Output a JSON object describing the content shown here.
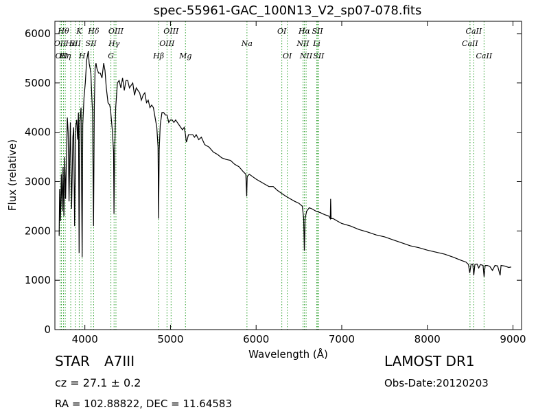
{
  "chart_data": {
    "type": "line",
    "title": "spec-55961-GAC_100N13_V2_sp07-078.fits",
    "xlabel": "Wavelength (Å)",
    "ylabel": "Flux (relative)",
    "xlim": [
      3650,
      9100
    ],
    "ylim": [
      0,
      6250
    ],
    "xticks": [
      4000,
      5000,
      6000,
      7000,
      8000,
      9000
    ],
    "yticks": [
      0,
      1000,
      2000,
      3000,
      4000,
      5000,
      6000
    ],
    "grid": false,
    "series": [
      {
        "points": [
          [
            3700,
            1900
          ],
          [
            3705,
            2850
          ],
          [
            3715,
            2200
          ],
          [
            3725,
            3150
          ],
          [
            3735,
            2400
          ],
          [
            3745,
            3300
          ],
          [
            3755,
            2300
          ],
          [
            3765,
            3500
          ],
          [
            3775,
            2650
          ],
          [
            3785,
            3450
          ],
          [
            3795,
            4300
          ],
          [
            3805,
            4000
          ],
          [
            3815,
            2600
          ],
          [
            3830,
            4200
          ],
          [
            3845,
            2450
          ],
          [
            3860,
            3900
          ],
          [
            3870,
            4100
          ],
          [
            3880,
            2100
          ],
          [
            3895,
            4150
          ],
          [
            3905,
            4250
          ],
          [
            3915,
            3850
          ],
          [
            3925,
            4400
          ],
          [
            3933,
            1550
          ],
          [
            3940,
            4200
          ],
          [
            3955,
            4500
          ],
          [
            3968,
            1470
          ],
          [
            3975,
            4150
          ],
          [
            3990,
            4700
          ],
          [
            4005,
            5000
          ],
          [
            4020,
            5450
          ],
          [
            4030,
            5550
          ],
          [
            4040,
            5650
          ],
          [
            4050,
            5400
          ],
          [
            4060,
            5300
          ],
          [
            4070,
            5200
          ],
          [
            4080,
            4750
          ],
          [
            4090,
            4400
          ],
          [
            4101,
            2100
          ],
          [
            4110,
            4500
          ],
          [
            4120,
            5300
          ],
          [
            4130,
            5400
          ],
          [
            4140,
            5300
          ],
          [
            4160,
            5200
          ],
          [
            4180,
            5200
          ],
          [
            4200,
            5100
          ],
          [
            4220,
            5400
          ],
          [
            4235,
            5250
          ],
          [
            4250,
            4900
          ],
          [
            4270,
            4600
          ],
          [
            4290,
            4550
          ],
          [
            4300,
            4450
          ],
          [
            4320,
            4050
          ],
          [
            4335,
            3600
          ],
          [
            4340,
            2350
          ],
          [
            4348,
            3600
          ],
          [
            4360,
            4500
          ],
          [
            4380,
            5000
          ],
          [
            4400,
            5050
          ],
          [
            4420,
            4900
          ],
          [
            4440,
            5100
          ],
          [
            4460,
            4850
          ],
          [
            4480,
            5050
          ],
          [
            4500,
            5050
          ],
          [
            4520,
            4900
          ],
          [
            4540,
            4950
          ],
          [
            4560,
            5000
          ],
          [
            4580,
            4750
          ],
          [
            4600,
            4900
          ],
          [
            4620,
            4850
          ],
          [
            4640,
            4800
          ],
          [
            4660,
            4650
          ],
          [
            4680,
            4750
          ],
          [
            4700,
            4800
          ],
          [
            4720,
            4600
          ],
          [
            4740,
            4650
          ],
          [
            4760,
            4500
          ],
          [
            4780,
            4550
          ],
          [
            4800,
            4500
          ],
          [
            4820,
            4300
          ],
          [
            4840,
            4100
          ],
          [
            4855,
            3700
          ],
          [
            4861,
            2250
          ],
          [
            4868,
            3650
          ],
          [
            4880,
            4150
          ],
          [
            4900,
            4400
          ],
          [
            4920,
            4400
          ],
          [
            4940,
            4350
          ],
          [
            4960,
            4350
          ],
          [
            4980,
            4200
          ],
          [
            5000,
            4250
          ],
          [
            5020,
            4250
          ],
          [
            5040,
            4200
          ],
          [
            5060,
            4250
          ],
          [
            5080,
            4200
          ],
          [
            5100,
            4150
          ],
          [
            5120,
            4100
          ],
          [
            5140,
            4050
          ],
          [
            5160,
            4100
          ],
          [
            5175,
            3950
          ],
          [
            5185,
            3800
          ],
          [
            5195,
            3850
          ],
          [
            5210,
            3950
          ],
          [
            5240,
            3950
          ],
          [
            5260,
            3950
          ],
          [
            5280,
            3900
          ],
          [
            5300,
            3950
          ],
          [
            5330,
            3850
          ],
          [
            5360,
            3900
          ],
          [
            5400,
            3750
          ],
          [
            5450,
            3700
          ],
          [
            5500,
            3600
          ],
          [
            5550,
            3550
          ],
          [
            5600,
            3480
          ],
          [
            5650,
            3450
          ],
          [
            5700,
            3430
          ],
          [
            5750,
            3350
          ],
          [
            5800,
            3300
          ],
          [
            5850,
            3200
          ],
          [
            5880,
            3150
          ],
          [
            5890,
            2700
          ],
          [
            5896,
            3100
          ],
          [
            5920,
            3150
          ],
          [
            5960,
            3100
          ],
          [
            6000,
            3050
          ],
          [
            6050,
            3000
          ],
          [
            6100,
            2950
          ],
          [
            6150,
            2900
          ],
          [
            6200,
            2900
          ],
          [
            6250,
            2820
          ],
          [
            6300,
            2760
          ],
          [
            6350,
            2700
          ],
          [
            6400,
            2650
          ],
          [
            6450,
            2600
          ],
          [
            6500,
            2560
          ],
          [
            6540,
            2500
          ],
          [
            6555,
            2250
          ],
          [
            6563,
            1600
          ],
          [
            6572,
            2250
          ],
          [
            6590,
            2400
          ],
          [
            6620,
            2470
          ],
          [
            6650,
            2450
          ],
          [
            6700,
            2400
          ],
          [
            6750,
            2370
          ],
          [
            6800,
            2330
          ],
          [
            6850,
            2300
          ],
          [
            6866,
            2250
          ],
          [
            6870,
            2650
          ],
          [
            6876,
            2250
          ],
          [
            6900,
            2250
          ],
          [
            6950,
            2200
          ],
          [
            7000,
            2150
          ],
          [
            7100,
            2100
          ],
          [
            7200,
            2030
          ],
          [
            7300,
            1980
          ],
          [
            7400,
            1920
          ],
          [
            7500,
            1880
          ],
          [
            7600,
            1820
          ],
          [
            7700,
            1760
          ],
          [
            7800,
            1700
          ],
          [
            7900,
            1660
          ],
          [
            8000,
            1610
          ],
          [
            8100,
            1570
          ],
          [
            8200,
            1530
          ],
          [
            8300,
            1470
          ],
          [
            8400,
            1400
          ],
          [
            8450,
            1370
          ],
          [
            8480,
            1320
          ],
          [
            8495,
            1150
          ],
          [
            8510,
            1320
          ],
          [
            8530,
            1330
          ],
          [
            8542,
            1100
          ],
          [
            8555,
            1320
          ],
          [
            8580,
            1330
          ],
          [
            8600,
            1250
          ],
          [
            8620,
            1320
          ],
          [
            8650,
            1300
          ],
          [
            8662,
            1070
          ],
          [
            8675,
            1300
          ],
          [
            8700,
            1300
          ],
          [
            8730,
            1280
          ],
          [
            8760,
            1200
          ],
          [
            8790,
            1300
          ],
          [
            8820,
            1290
          ],
          [
            8850,
            1100
          ],
          [
            8860,
            1300
          ],
          [
            8900,
            1290
          ],
          [
            8950,
            1260
          ],
          [
            8980,
            1270
          ]
        ]
      }
    ],
    "lines": [
      {
        "x": 3711,
        "label": "OII",
        "tier": 2
      },
      {
        "x": 3726,
        "label": "OII",
        "tier": 3
      },
      {
        "x": 3750,
        "label": "Hθ",
        "tier": 1
      },
      {
        "x": 3771,
        "label": "Hη",
        "tier": 3
      },
      {
        "x": 3835,
        "label": "Hε",
        "tier": 2
      },
      {
        "x": 3889,
        "label": "SII",
        "tier": 2
      },
      {
        "x": 3934,
        "label": "K",
        "tier": 1
      },
      {
        "x": 3969,
        "label": "H",
        "tier": 3
      },
      {
        "x": 4072,
        "label": "SII",
        "tier": 2
      },
      {
        "x": 4102,
        "label": "Hδ",
        "tier": 1
      },
      {
        "x": 4304,
        "label": "G",
        "tier": 3
      },
      {
        "x": 4341,
        "label": "Hγ",
        "tier": 2
      },
      {
        "x": 4363,
        "label": "OIII",
        "tier": 1
      },
      {
        "x": 4861,
        "label": "Hβ",
        "tier": 3
      },
      {
        "x": 4959,
        "label": "OIII",
        "tier": 2
      },
      {
        "x": 5007,
        "label": "OIII",
        "tier": 1
      },
      {
        "x": 5175,
        "label": "Mg",
        "tier": 3
      },
      {
        "x": 5893,
        "label": "Na",
        "tier": 2
      },
      {
        "x": 6300,
        "label": "OI",
        "tier": 1
      },
      {
        "x": 6364,
        "label": "OI",
        "tier": 3
      },
      {
        "x": 6548,
        "label": "NII",
        "tier": 2
      },
      {
        "x": 6563,
        "label": "Hα",
        "tier": 1
      },
      {
        "x": 6584,
        "label": "NII",
        "tier": 3
      },
      {
        "x": 6708,
        "label": "Li",
        "tier": 2
      },
      {
        "x": 6717,
        "label": "SII",
        "tier": 1
      },
      {
        "x": 6731,
        "label": "SII",
        "tier": 3
      },
      {
        "x": 8498,
        "label": "CaII",
        "tier": 2
      },
      {
        "x": 8542,
        "label": "CaII",
        "tier": 1
      },
      {
        "x": 8662,
        "label": "CaII",
        "tier": 3
      }
    ],
    "line_color": "#2ca02c"
  },
  "info": {
    "class_label": "STAR",
    "subclass": "A7III",
    "cz": "cz = 27.1  ± 0.2",
    "coords": "RA = 102.88822, DEC = 11.64583",
    "survey": "LAMOST DR1",
    "obs_date": "Obs-Date:20120203"
  }
}
